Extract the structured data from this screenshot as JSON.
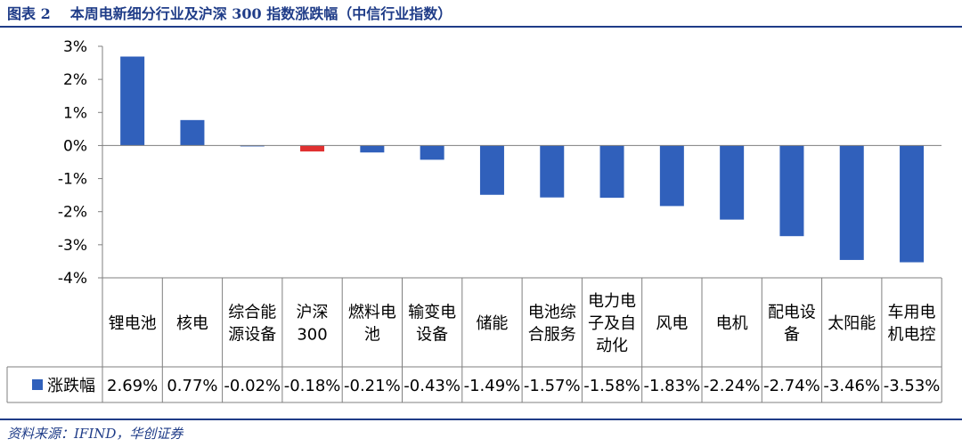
{
  "title": {
    "figure_no": "图表 2",
    "text": "本周电新细分行业及沪深 300 指数涨跌幅（中信行业指数）"
  },
  "source": "资料来源：IFIND，华创证券",
  "chart_data": {
    "type": "bar",
    "categories": [
      [
        "锂电池"
      ],
      [
        "核电"
      ],
      [
        "综合能",
        "源设备"
      ],
      [
        "沪深",
        "300"
      ],
      [
        "燃料电",
        "池"
      ],
      [
        "输变电",
        "设备"
      ],
      [
        "储能"
      ],
      [
        "电池综",
        "合服务"
      ],
      [
        "电力电",
        "子及自",
        "动化"
      ],
      [
        "风电"
      ],
      [
        "电机"
      ],
      [
        "配电设",
        "备"
      ],
      [
        "太阳能"
      ],
      [
        "车用电",
        "机电控"
      ]
    ],
    "series": [
      {
        "name": "涨跌幅",
        "values": [
          2.69,
          0.77,
          -0.02,
          -0.18,
          -0.21,
          -0.43,
          -1.49,
          -1.57,
          -1.58,
          -1.83,
          -2.24,
          -2.74,
          -3.46,
          -3.53
        ],
        "labels": [
          "2.69%",
          "0.77%",
          "-0.02%",
          "-0.18%",
          "-0.21%",
          "-0.43%",
          "-1.49%",
          "-1.57%",
          "-1.58%",
          "-1.83%",
          "-2.24%",
          "-2.74%",
          "-3.46%",
          "-3.53%"
        ]
      }
    ],
    "y_ticks": [
      3,
      2,
      1,
      0,
      -1,
      -2,
      -3,
      -4
    ],
    "y_tick_labels": [
      "3%",
      "2%",
      "1%",
      "0%",
      "-1%",
      "-2%",
      "-3%",
      "-4%"
    ],
    "ylim": [
      -4,
      3
    ],
    "colors": {
      "default": "#3060bb",
      "highlight": "#e03030",
      "highlight_index": 3
    },
    "legend": "bottom-table",
    "grid": false
  }
}
